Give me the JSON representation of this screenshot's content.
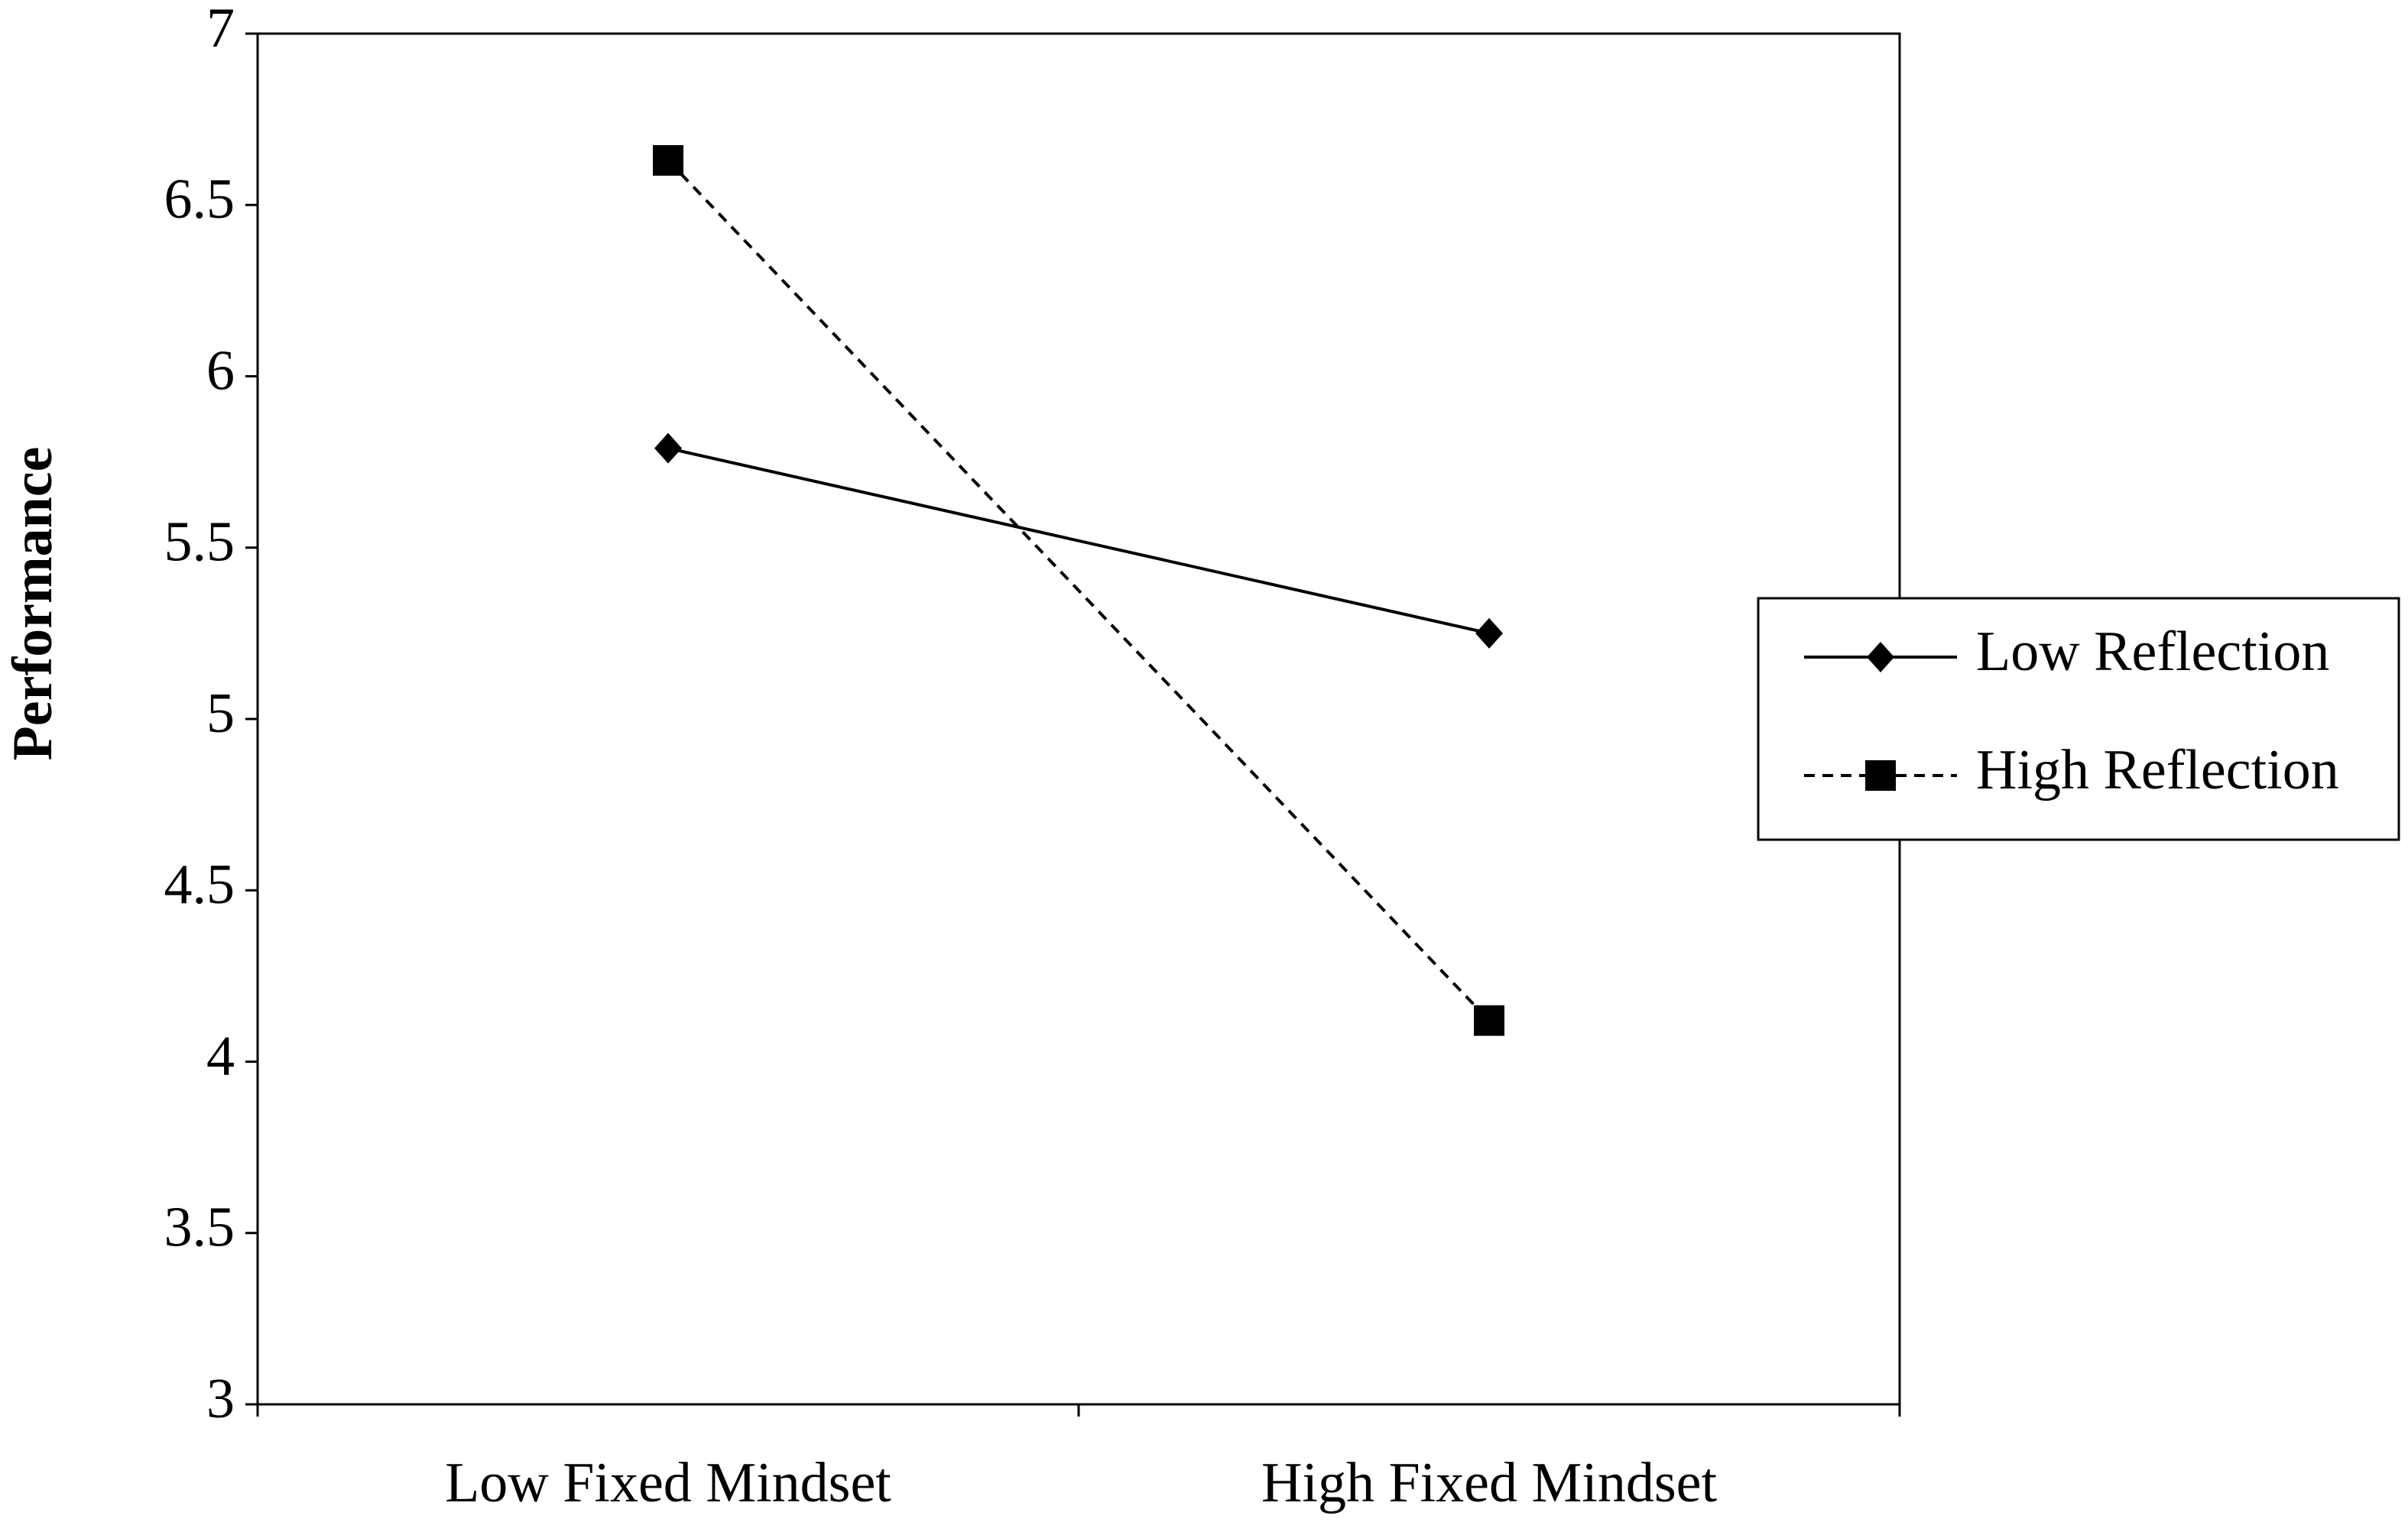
{
  "chart_data": {
    "type": "line",
    "y_label": "Performance",
    "categories": [
      "Low Fixed Mindset",
      "High Fixed Mindset"
    ],
    "series": [
      {
        "name": "Low Reflection",
        "color": "#000000",
        "line_style": "solid",
        "marker": "diamond",
        "values": [
          5.79,
          5.25
        ]
      },
      {
        "name": "High Reflection",
        "color": "#000000",
        "line_style": "dashed",
        "marker": "square",
        "values": [
          6.63,
          4.12
        ]
      }
    ],
    "ylim": [
      3,
      7
    ],
    "yticks": [
      3,
      3.5,
      4,
      4.5,
      5,
      5.5,
      6,
      6.5,
      7
    ],
    "grid": false,
    "legend": "right"
  }
}
